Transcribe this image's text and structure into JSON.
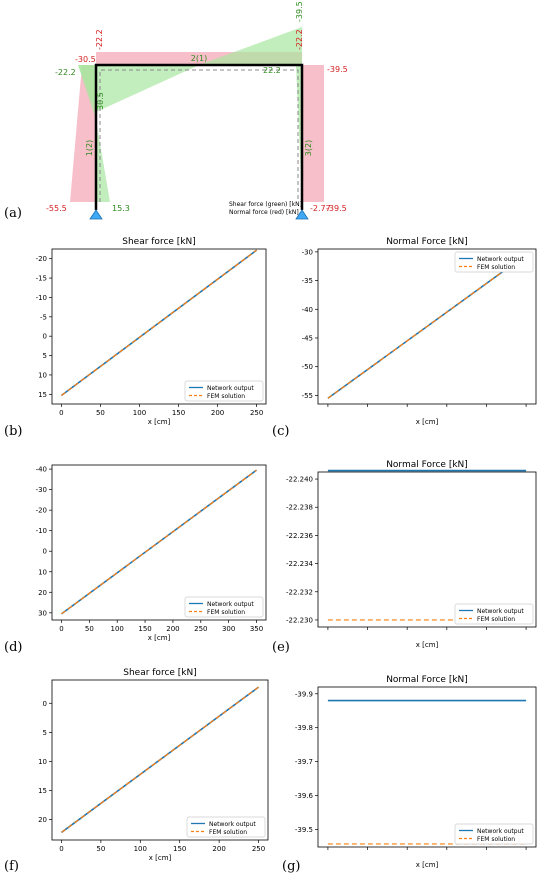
{
  "panel_labels": [
    "(a)",
    "(b)",
    "(c)",
    "(d)",
    "(e)",
    "(f)",
    "(g)"
  ],
  "frame": {
    "legend": [
      "Shear force (green) [kN]",
      "Normal force (red) [kN]"
    ],
    "members": [
      "1(2)",
      "2(1)",
      "3(2)"
    ],
    "values": {
      "left_col_top_normal": "-30.5",
      "left_col_top_shear": "-22.2",
      "left_col_bottom_normal": "-55.5",
      "left_col_bottom_shear": "15.3",
      "left_col_mid_normal": "30.5",
      "beam_left_normal": "-22.2",
      "beam_right_normal": "-22.2",
      "beam_right_shear_top": "-39.5",
      "beam_right_shear": "22.2",
      "right_col_top_normal": "-39.5",
      "right_col_bottom_shear": "-2.77",
      "right_col_bottom_normal": "-39.5"
    },
    "colors": {
      "shear": "#a8e6a0",
      "normal": "#f4a9b8",
      "shear_text": "#2e8b1e",
      "normal_text": "#d42020",
      "support": "#3fa9f5"
    }
  },
  "chart_data": [
    {
      "id": "b",
      "type": "line",
      "title": "Shear force [kN]",
      "xlabel": "x [cm]",
      "ylabel": "",
      "xlim": [
        -12,
        262
      ],
      "ylim": [
        17.5,
        -22.5
      ],
      "xticks": [
        0,
        50,
        100,
        150,
        200,
        250
      ],
      "xtick_labels": [
        "0",
        "50",
        "100",
        "150",
        "200",
        "250"
      ],
      "yticks": [
        -20,
        -15,
        -10,
        -5,
        0,
        5,
        10,
        15
      ],
      "ytick_labels": [
        "-20",
        "-15",
        "-10",
        "-5",
        "0",
        "5",
        "10",
        "15"
      ],
      "series": [
        {
          "name": "Network output",
          "x": [
            0,
            250
          ],
          "y": [
            15.3,
            -22.2
          ],
          "color": "#1f77b4",
          "dash": ""
        },
        {
          "name": "FEM solution",
          "x": [
            0,
            250
          ],
          "y": [
            15.3,
            -22.2
          ],
          "color": "#ff7f0e",
          "dash": "5,3"
        }
      ],
      "legend": "lower right"
    },
    {
      "id": "c",
      "type": "line",
      "title": "Normal Force [kN]",
      "xlabel": "x [cm]",
      "ylabel": "",
      "xlim": [
        -0.05,
        1.05
      ],
      "ylim": [
        -56.5,
        -29.5
      ],
      "xticks": [
        0,
        0.2,
        0.4,
        0.6,
        0.8,
        1.0
      ],
      "xtick_labels": [
        "",
        "",
        "",
        "",
        "",
        ""
      ],
      "yticks": [
        -55,
        -50,
        -45,
        -40,
        -35,
        -30
      ],
      "ytick_labels": [
        "-55",
        "-50",
        "-45",
        "-40",
        "-35",
        "-30"
      ],
      "series": [
        {
          "name": "Network output",
          "x": [
            0,
            1
          ],
          "y": [
            -55.5,
            -30.5
          ],
          "color": "#1f77b4",
          "dash": ""
        },
        {
          "name": "FEM solution",
          "x": [
            0,
            1
          ],
          "y": [
            -55.5,
            -30.5
          ],
          "color": "#ff7f0e",
          "dash": "5,3"
        }
      ],
      "legend": "upper right"
    },
    {
      "id": "d",
      "type": "line",
      "title": "",
      "xlabel": "x [cm]",
      "ylabel": "",
      "xlim": [
        -17,
        367
      ],
      "ylim": [
        33.5,
        -42
      ],
      "xticks": [
        0,
        50,
        100,
        150,
        200,
        250,
        300,
        350
      ],
      "xtick_labels": [
        "0",
        "50",
        "100",
        "150",
        "200",
        "250",
        "300",
        "350"
      ],
      "yticks": [
        -40,
        -30,
        -20,
        -10,
        0,
        10,
        20,
        30
      ],
      "ytick_labels": [
        "-40",
        "-30",
        "-20",
        "-10",
        "0",
        "10",
        "20",
        "30"
      ],
      "series": [
        {
          "name": "Network output",
          "x": [
            0,
            350
          ],
          "y": [
            30.5,
            -39.5
          ],
          "color": "#1f77b4",
          "dash": ""
        },
        {
          "name": "FEM solution",
          "x": [
            0,
            350
          ],
          "y": [
            30.5,
            -39.5
          ],
          "color": "#ff7f0e",
          "dash": "5,3"
        }
      ],
      "legend": "lower right"
    },
    {
      "id": "e",
      "type": "line",
      "title": "Normal Force [kN]",
      "xlabel": "x [cm]",
      "ylabel": "",
      "xlim": [
        -0.05,
        1.05
      ],
      "ylim": [
        -22.2295,
        -22.2405
      ],
      "xticks": [
        0,
        0.2,
        0.4,
        0.6,
        0.8,
        1.0
      ],
      "xtick_labels": [
        "",
        "",
        "",
        "",
        "",
        ""
      ],
      "yticks": [
        -22.24,
        -22.238,
        -22.236,
        -22.234,
        -22.232,
        -22.23
      ],
      "ytick_labels": [
        "-22.240",
        "-22.238",
        "-22.236",
        "-22.234",
        "-22.232",
        "-22.230"
      ],
      "series": [
        {
          "name": "Network output",
          "x": [
            0,
            1
          ],
          "y": [
            -22.2406,
            -22.2406
          ],
          "color": "#1f77b4",
          "dash": ""
        },
        {
          "name": "FEM solution",
          "x": [
            0,
            1
          ],
          "y": [
            -22.23,
            -22.23
          ],
          "color": "#ff7f0e",
          "dash": "5,3"
        }
      ],
      "legend": "lower right"
    },
    {
      "id": "f",
      "type": "line",
      "title": "Shear force [kN]",
      "xlabel": "x [cm]",
      "ylabel": "",
      "xlim": [
        -12,
        262
      ],
      "ylim": [
        23.5,
        -4
      ],
      "xticks": [
        0,
        50,
        100,
        150,
        200,
        250
      ],
      "xtick_labels": [
        "0",
        "50",
        "100",
        "150",
        "200",
        "250"
      ],
      "yticks": [
        0,
        5,
        10,
        15,
        20
      ],
      "ytick_labels": [
        "0",
        "5",
        "10",
        "15",
        "20"
      ],
      "series": [
        {
          "name": "Network output",
          "x": [
            0,
            250
          ],
          "y": [
            22.2,
            -2.77
          ],
          "color": "#1f77b4",
          "dash": ""
        },
        {
          "name": "FEM solution",
          "x": [
            0,
            250
          ],
          "y": [
            22.2,
            -2.77
          ],
          "color": "#ff7f0e",
          "dash": "5,3"
        }
      ],
      "legend": "lower right"
    },
    {
      "id": "g",
      "type": "line",
      "title": "Normal Force [kN]",
      "xlabel": "x [cm]",
      "ylabel": "",
      "xlim": [
        -0.05,
        1.05
      ],
      "ylim": [
        -39.448,
        -39.92
      ],
      "xticks": [
        0,
        0.2,
        0.4,
        0.6,
        0.8,
        1.0
      ],
      "xtick_labels": [
        "",
        "",
        "",
        "",
        "",
        ""
      ],
      "yticks": [
        -39.9,
        -39.8,
        -39.7,
        -39.6,
        -39.5
      ],
      "ytick_labels": [
        "-39.9",
        "-39.8",
        "-39.7",
        "-39.6",
        "-39.5"
      ],
      "series": [
        {
          "name": "Network output",
          "x": [
            0,
            1
          ],
          "y": [
            -39.88,
            -39.88
          ],
          "color": "#1f77b4",
          "dash": ""
        },
        {
          "name": "FEM solution",
          "x": [
            0,
            1
          ],
          "y": [
            -39.457,
            -39.457
          ],
          "color": "#ff7f0e",
          "dash": "5,3"
        }
      ],
      "legend": "lower right"
    }
  ]
}
